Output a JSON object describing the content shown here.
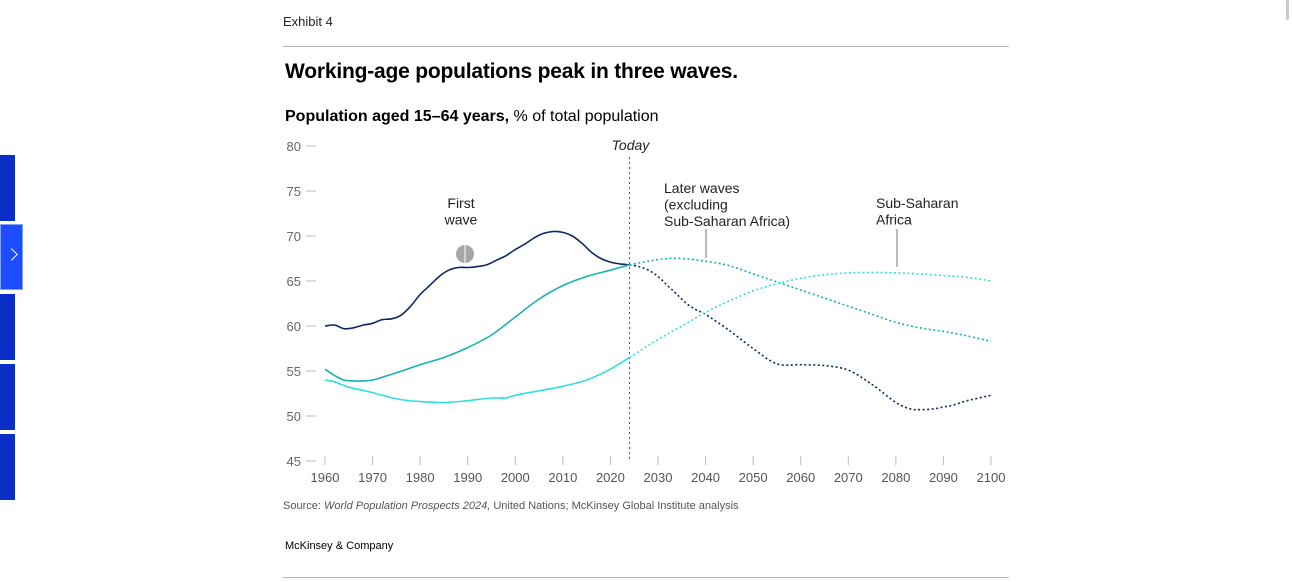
{
  "exhibit": "Exhibit 4",
  "title": "Working-age populations peak in three waves.",
  "subtitle_bold": "Population aged 15–64 years,",
  "subtitle_rest": " % of total population",
  "source_prefix": "Source: ",
  "source_italic": "World Population Prospects 2024,",
  "source_rest": " United Nations; McKinsey Global Institute analysis",
  "brand": "McKinsey & Company",
  "colors": {
    "dark_navy": "#0d2766",
    "teal": "#16b3ae",
    "light_cyan": "#2ee0e0",
    "grey_dot": "#a6a6a6"
  },
  "chart_data": {
    "type": "line",
    "title": "Working-age populations peak in three waves.",
    "ylabel": "Population aged 15–64 years, % of total population",
    "xlim": [
      1960,
      2100
    ],
    "ylim": [
      45,
      80
    ],
    "yticks": [
      80,
      75,
      70,
      65,
      60,
      55,
      50,
      45
    ],
    "xticks": [
      1960,
      1970,
      1980,
      1990,
      2000,
      2010,
      2020,
      2030,
      2040,
      2050,
      2060,
      2070,
      2080,
      2090,
      2100
    ],
    "today_label": "Today",
    "today_year": 2024,
    "series": [
      {
        "name": "First wave",
        "color": "#0d2766",
        "x": [
          1960,
          1962,
          1964,
          1966,
          1968,
          1970,
          1972,
          1974,
          1976,
          1978,
          1980,
          1982,
          1984,
          1986,
          1988,
          1990,
          1992,
          1994,
          1996,
          1998,
          2000,
          2002,
          2004,
          2006,
          2008,
          2010,
          2012,
          2014,
          2016,
          2018,
          2020,
          2022,
          2024,
          2026,
          2028,
          2030,
          2032,
          2034,
          2036,
          2038,
          2040,
          2045,
          2050,
          2055,
          2060,
          2065,
          2070,
          2075,
          2080,
          2083,
          2085,
          2088,
          2090,
          2092,
          2095,
          2100
        ],
        "y": [
          60,
          60.1,
          59.7,
          59.8,
          60.1,
          60.3,
          60.7,
          60.8,
          61.2,
          62.2,
          63.5,
          64.5,
          65.5,
          66.2,
          66.5,
          66.5,
          66.6,
          66.8,
          67.3,
          67.8,
          68.5,
          69.1,
          69.8,
          70.3,
          70.5,
          70.4,
          70,
          69.2,
          68.2,
          67.5,
          67.1,
          66.9,
          66.8,
          66.6,
          66.2,
          65.5,
          64.5,
          63.5,
          62.5,
          61.8,
          61.3,
          59.5,
          57.5,
          55.8,
          55.7,
          55.6,
          55.1,
          53.5,
          51.5,
          50.8,
          50.7,
          50.8,
          51,
          51.2,
          51.7,
          52.3
        ]
      },
      {
        "name": "Later waves (excluding Sub-Saharan Africa)",
        "color": "#16b3ae",
        "x": [
          1960,
          1962,
          1964,
          1966,
          1968,
          1970,
          1972,
          1975,
          1980,
          1985,
          1990,
          1995,
          2000,
          2005,
          2010,
          2015,
          2020,
          2024,
          2028,
          2032,
          2035,
          2040,
          2045,
          2050,
          2055,
          2060,
          2065,
          2070,
          2075,
          2080,
          2085,
          2090,
          2095,
          2100
        ],
        "y": [
          55.2,
          54.5,
          54,
          53.9,
          53.9,
          54,
          54.3,
          54.8,
          55.7,
          56.5,
          57.6,
          59,
          61,
          63,
          64.5,
          65.5,
          66.2,
          66.8,
          67.2,
          67.5,
          67.5,
          67.2,
          66.7,
          65.8,
          64.9,
          64,
          63.1,
          62.2,
          61.3,
          60.4,
          59.8,
          59.4,
          58.9,
          58.3
        ]
      },
      {
        "name": "Sub-Saharan Africa",
        "color": "#2ee0e0",
        "x": [
          1960,
          1962,
          1965,
          1970,
          1975,
          1980,
          1985,
          1990,
          1995,
          1998,
          2000,
          2005,
          2010,
          2015,
          2020,
          2024,
          2030,
          2035,
          2040,
          2045,
          2050,
          2055,
          2060,
          2065,
          2070,
          2075,
          2080,
          2085,
          2090,
          2095,
          2100
        ],
        "y": [
          54,
          53.8,
          53.2,
          52.6,
          51.9,
          51.6,
          51.5,
          51.7,
          52,
          52,
          52.3,
          52.8,
          53.3,
          54,
          55.2,
          56.5,
          58.5,
          60,
          61.5,
          62.8,
          63.9,
          64.7,
          65.3,
          65.7,
          65.9,
          65.95,
          65.9,
          65.8,
          65.6,
          65.4,
          65
        ]
      }
    ],
    "annotations": [
      {
        "label": "First wave",
        "lines": [
          "First",
          "wave"
        ]
      },
      {
        "label": "Later waves (excluding Sub-Saharan Africa)",
        "lines": [
          "Later waves",
          "(excluding",
          "Sub-Saharan Africa)"
        ]
      },
      {
        "label": "Sub-Saharan Africa",
        "lines": [
          "Sub-Saharan",
          "Africa"
        ]
      }
    ]
  }
}
